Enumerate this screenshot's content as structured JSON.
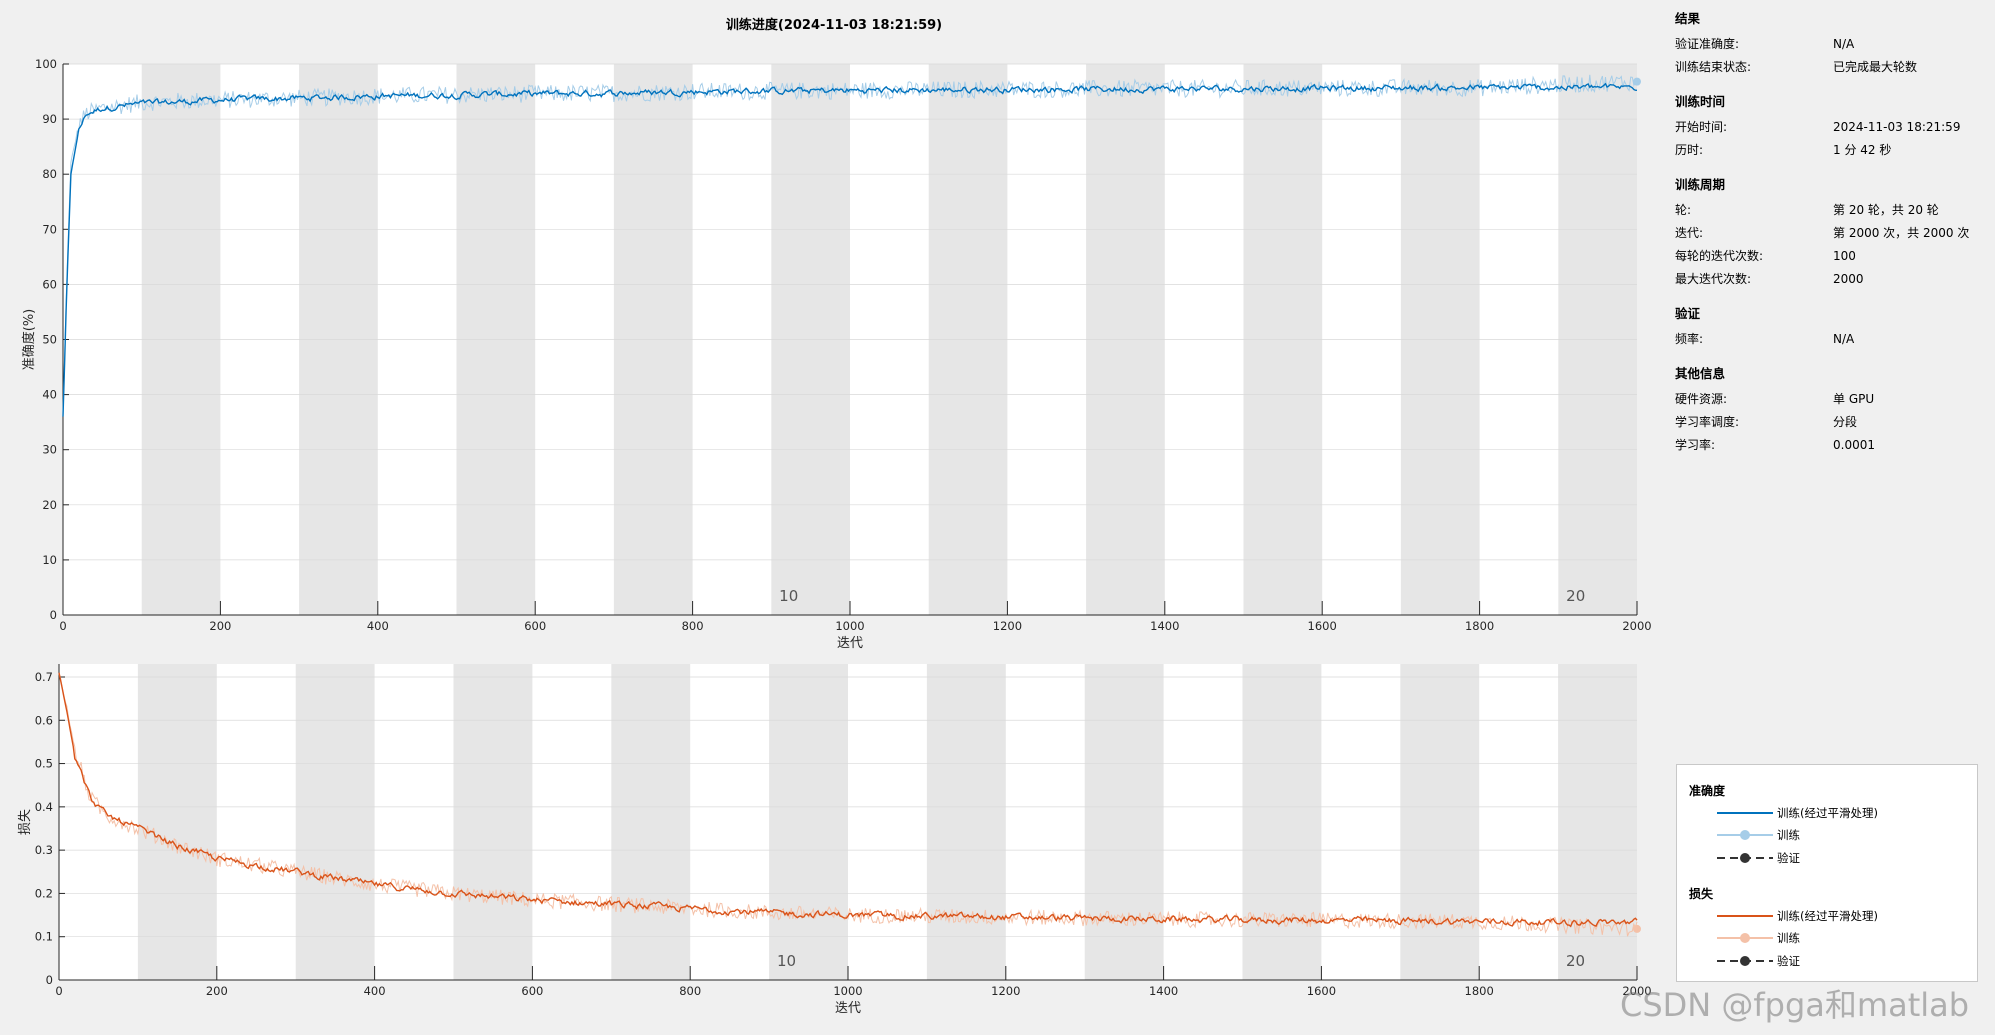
{
  "window": {
    "title": "训练进度(2024-11-03 18:21:59)"
  },
  "chart_data": [
    {
      "type": "line",
      "xlabel": "迭代",
      "ylabel": "准确度(%)",
      "xlim": [
        0,
        2000
      ],
      "ylim": [
        0,
        100
      ],
      "x_ticks": [
        0,
        200,
        400,
        600,
        800,
        1000,
        1200,
        1400,
        1600,
        1800,
        2000
      ],
      "y_ticks": [
        0,
        10,
        20,
        30,
        40,
        50,
        60,
        70,
        80,
        90,
        100
      ],
      "epoch_labels": [
        {
          "iteration": 900,
          "label": "10"
        },
        {
          "iteration": 1900,
          "label": "20"
        }
      ],
      "series": [
        {
          "name": "训练(经过平滑处理)",
          "color": "#0072bd",
          "x": [
            0,
            5,
            10,
            20,
            30,
            50,
            100,
            200,
            300,
            400,
            500,
            600,
            700,
            800,
            900,
            1000,
            1200,
            1400,
            1600,
            1800,
            2000
          ],
          "values": [
            36,
            60,
            80,
            88,
            91,
            92,
            92.8,
            93.5,
            93.8,
            94.2,
            94.4,
            94.6,
            94.7,
            95.0,
            95.1,
            95.2,
            95.4,
            95.5,
            95.6,
            95.7,
            95.8
          ]
        },
        {
          "name": "训练",
          "color": "#a6cde8",
          "x": [
            0,
            5,
            10,
            20,
            30,
            50,
            100,
            200,
            300,
            400,
            500,
            600,
            700,
            800,
            900,
            1000,
            1200,
            1400,
            1600,
            1800,
            2000
          ],
          "values": [
            36,
            62,
            82,
            89,
            91,
            92,
            93,
            93.5,
            93.8,
            94.2,
            94.4,
            94.6,
            94.7,
            95.0,
            95.1,
            95.2,
            95.4,
            95.5,
            95.6,
            95.7,
            96.8
          ]
        }
      ]
    },
    {
      "type": "line",
      "xlabel": "迭代",
      "ylabel": "损失",
      "xlim": [
        0,
        2000
      ],
      "ylim": [
        0,
        0.73
      ],
      "x_ticks": [
        0,
        200,
        400,
        600,
        800,
        1000,
        1200,
        1400,
        1600,
        1800,
        2000
      ],
      "y_ticks": [
        0,
        0.1,
        0.2,
        0.3,
        0.4,
        0.5,
        0.6,
        0.7
      ],
      "epoch_labels": [
        {
          "iteration": 900,
          "label": "10"
        },
        {
          "iteration": 1900,
          "label": "20"
        }
      ],
      "series": [
        {
          "name": "训练(经过平滑处理)",
          "color": "#d95319",
          "x": [
            0,
            10,
            20,
            40,
            60,
            100,
            150,
            200,
            300,
            400,
            500,
            600,
            700,
            800,
            900,
            1000,
            1200,
            1400,
            1600,
            1800,
            2000
          ],
          "values": [
            0.71,
            0.62,
            0.52,
            0.42,
            0.38,
            0.35,
            0.31,
            0.28,
            0.25,
            0.22,
            0.2,
            0.185,
            0.175,
            0.165,
            0.155,
            0.15,
            0.145,
            0.14,
            0.138,
            0.135,
            0.133
          ]
        },
        {
          "name": "训练",
          "color": "#f4c1a8",
          "x": [
            0,
            10,
            20,
            40,
            60,
            100,
            150,
            200,
            300,
            400,
            500,
            600,
            700,
            800,
            900,
            1000,
            1200,
            1400,
            1600,
            1800,
            2000
          ],
          "values": [
            0.71,
            0.63,
            0.53,
            0.42,
            0.38,
            0.35,
            0.31,
            0.28,
            0.25,
            0.22,
            0.2,
            0.185,
            0.175,
            0.165,
            0.155,
            0.15,
            0.145,
            0.14,
            0.138,
            0.135,
            0.118
          ]
        }
      ]
    }
  ],
  "info": {
    "sections": [
      {
        "title": "结果",
        "rows": [
          {
            "key": "验证准确度:",
            "value": "N/A"
          },
          {
            "key": "训练结束状态:",
            "value": "已完成最大轮数"
          }
        ]
      },
      {
        "title": "训练时间",
        "rows": [
          {
            "key": "开始时间:",
            "value": "2024-11-03 18:21:59"
          },
          {
            "key": "历时:",
            "value": "1 分 42 秒"
          }
        ]
      },
      {
        "title": "训练周期",
        "rows": [
          {
            "key": "轮:",
            "value": "第 20 轮，共 20 轮"
          },
          {
            "key": "迭代:",
            "value": "第 2000 次，共 2000 次"
          },
          {
            "key": "每轮的迭代次数:",
            "value": "100"
          },
          {
            "key": "最大迭代次数:",
            "value": "2000"
          }
        ]
      },
      {
        "title": "验证",
        "rows": [
          {
            "key": "频率:",
            "value": "N/A"
          }
        ]
      },
      {
        "title": "其他信息",
        "rows": [
          {
            "key": "硬件资源:",
            "value": "单 GPU"
          },
          {
            "key": "学习率调度:",
            "value": "分段"
          },
          {
            "key": "学习率:",
            "value": "0.0001"
          }
        ]
      }
    ]
  },
  "legend": {
    "acc_title": "准确度",
    "acc_items": [
      "训练(经过平滑处理)",
      "训练",
      "验证"
    ],
    "loss_title": "损失",
    "loss_items": [
      "训练(经过平滑处理)",
      "训练",
      "验证"
    ],
    "colors": {
      "acc_smooth": "#0072bd",
      "acc_raw": "#a6cde8",
      "loss_smooth": "#d95319",
      "loss_raw": "#f4c1a8",
      "validation": "#333333"
    }
  },
  "watermark": "CSDN @fpga和matlab"
}
